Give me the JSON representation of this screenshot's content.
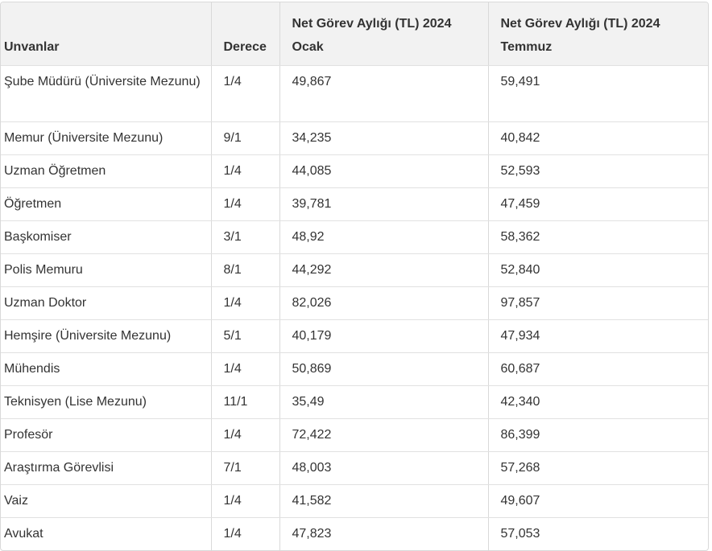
{
  "table": {
    "headers": [
      "Unvanlar",
      "Derece",
      "Net Görev Aylığı (TL) 2024 Ocak",
      "Net Görev Aylığı (TL) 2024 Temmuz"
    ],
    "rows": [
      [
        "Şube Müdürü (Üniversite Mezunu)",
        "1/4",
        "49,867",
        "59,491"
      ],
      [
        "Memur (Üniversite Mezunu)",
        "9/1",
        "34,235",
        "40,842"
      ],
      [
        "Uzman Öğretmen",
        "1/4",
        "44,085",
        "52,593"
      ],
      [
        "Öğretmen",
        "1/4",
        "39,781",
        "47,459"
      ],
      [
        "Başkomiser",
        "3/1",
        "48,92",
        "58,362"
      ],
      [
        "Polis Memuru",
        "8/1",
        "44,292",
        "52,840"
      ],
      [
        "Uzman Doktor",
        "1/4",
        "82,026",
        "97,857"
      ],
      [
        "Hemşire (Üniversite Mezunu)",
        "5/1",
        "40,179",
        "47,934"
      ],
      [
        "Mühendis",
        "1/4",
        "50,869",
        "60,687"
      ],
      [
        "Teknisyen (Lise Mezunu)",
        "11/1",
        "35,49",
        "42,340"
      ],
      [
        "Profesör",
        "1/4",
        "72,422",
        "86,399"
      ],
      [
        "Araştırma Görevlisi",
        "7/1",
        "48,003",
        "57,268"
      ],
      [
        "Vaiz",
        "1/4",
        "41,582",
        "49,607"
      ],
      [
        "Avukat",
        "1/4",
        "47,823",
        "57,053"
      ]
    ]
  }
}
